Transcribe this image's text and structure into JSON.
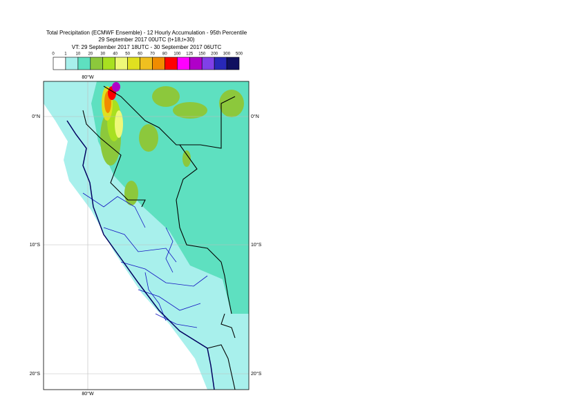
{
  "header": {
    "title": "Total Precipitation (ECMWF Ensemble) - 12 Hourly Accumulation - 95th Percentile",
    "run": "29 September 2017 00UTC (t+18,t+30)",
    "valid": "VT: 29 September 2017 18UTC - 30 September 2017 06UTC"
  },
  "legend": {
    "labels": [
      "0",
      "1",
      "10",
      "20",
      "30",
      "40",
      "50",
      "60",
      "70",
      "80",
      "100",
      "125",
      "150",
      "200",
      "300",
      "500"
    ],
    "colors": [
      "#ffffff",
      "#a8f0ec",
      "#5ee0c0",
      "#8cc83c",
      "#a8e020",
      "#eef878",
      "#e0e020",
      "#f0c020",
      "#f08c00",
      "#ff0000",
      "#ff00ff",
      "#b000c8",
      "#8040e8",
      "#2828b8",
      "#101060"
    ]
  },
  "map": {
    "lon_labels": [
      "80°W",
      "80°W"
    ],
    "lat_labels_left": [
      "0°N",
      "10°S",
      "20°S"
    ],
    "lat_labels_right": [
      "0°N",
      "10°S",
      "20°S"
    ]
  }
}
